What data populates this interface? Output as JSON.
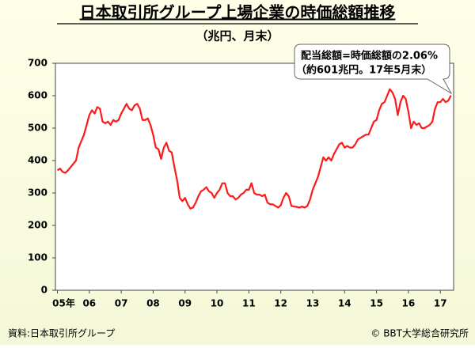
{
  "chart_data": {
    "type": "line",
    "title": "日本取引所グループ上場企業の時価総額推移",
    "subtitle": "（兆円、月末）",
    "annotation": [
      "配当総額=時価総額の2.06%",
      "（約601兆円。17年5月末）"
    ],
    "source": "資料:日本取引所グループ",
    "credit": "© BBT大学総合研究所",
    "color": "#ff1a1a",
    "ylim": [
      0,
      700
    ],
    "yticks": [
      0,
      100,
      200,
      300,
      400,
      500,
      600,
      700
    ],
    "categories": [
      "05年",
      null,
      null,
      null,
      null,
      null,
      null,
      null,
      null,
      null,
      null,
      null,
      "06",
      null,
      null,
      null,
      null,
      null,
      null,
      null,
      null,
      null,
      null,
      null,
      "07",
      null,
      null,
      null,
      null,
      null,
      null,
      null,
      null,
      null,
      null,
      null,
      "08",
      null,
      null,
      null,
      null,
      null,
      null,
      null,
      null,
      null,
      null,
      null,
      "09",
      null,
      null,
      null,
      null,
      null,
      null,
      null,
      null,
      null,
      null,
      null,
      "10",
      null,
      null,
      null,
      null,
      null,
      null,
      null,
      null,
      null,
      null,
      null,
      "11",
      null,
      null,
      null,
      null,
      null,
      null,
      null,
      null,
      null,
      null,
      null,
      "12",
      null,
      null,
      null,
      null,
      null,
      null,
      null,
      null,
      null,
      null,
      null,
      "13",
      null,
      null,
      null,
      null,
      null,
      null,
      null,
      null,
      null,
      null,
      null,
      "14",
      null,
      null,
      null,
      null,
      null,
      null,
      null,
      null,
      null,
      null,
      null,
      "15",
      null,
      null,
      null,
      null,
      null,
      null,
      null,
      null,
      null,
      null,
      null,
      "16",
      null,
      null,
      null,
      null,
      null,
      null,
      null,
      null,
      null,
      null,
      null,
      "17",
      null,
      null,
      null,
      null
    ],
    "values": [
      370,
      375,
      365,
      362,
      370,
      380,
      390,
      400,
      440,
      460,
      480,
      510,
      540,
      555,
      545,
      565,
      560,
      520,
      515,
      520,
      510,
      525,
      520,
      525,
      545,
      560,
      575,
      560,
      555,
      570,
      575,
      560,
      525,
      525,
      530,
      510,
      480,
      440,
      435,
      405,
      440,
      455,
      430,
      425,
      380,
      340,
      285,
      275,
      285,
      265,
      252,
      255,
      270,
      290,
      305,
      310,
      318,
      305,
      300,
      285,
      300,
      310,
      330,
      330,
      300,
      290,
      290,
      280,
      285,
      295,
      300,
      310,
      310,
      330,
      300,
      295,
      295,
      290,
      295,
      270,
      265,
      265,
      260,
      255,
      262,
      285,
      300,
      290,
      260,
      258,
      257,
      255,
      258,
      255,
      260,
      280,
      310,
      330,
      350,
      380,
      410,
      400,
      410,
      400,
      420,
      435,
      450,
      455,
      440,
      445,
      440,
      440,
      450,
      465,
      470,
      475,
      480,
      480,
      500,
      520,
      525,
      555,
      575,
      580,
      600,
      620,
      610,
      590,
      540,
      580,
      600,
      590,
      550,
      500,
      520,
      510,
      515,
      500,
      500,
      505,
      510,
      520,
      560,
      580,
      580,
      590,
      580,
      585,
      601
    ]
  }
}
